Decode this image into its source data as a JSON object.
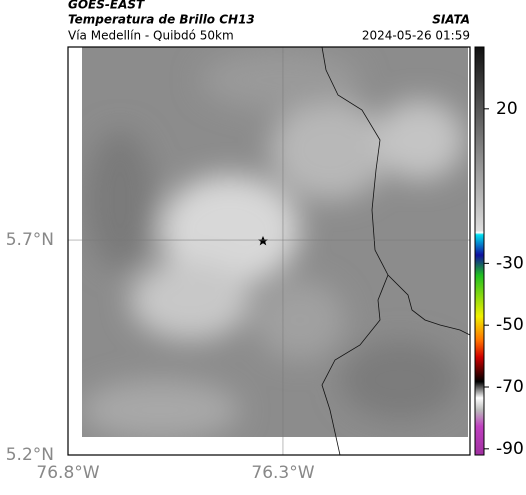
{
  "header": {
    "satellite": "GOES-EAST",
    "product": "Temperatura de Brillo CH13",
    "region": "Vía Medellín - Quibdó 50km",
    "source": "SIATA",
    "datetime": "2024-05-26 01:59"
  },
  "map": {
    "xlim": [
      -76.8,
      -75.865
    ],
    "ylim": [
      5.2,
      6.149
    ],
    "xticks": [
      {
        "value": -76.8,
        "label": "76.8°W"
      },
      {
        "value": -76.3,
        "label": "76.3°W"
      }
    ],
    "yticks": [
      {
        "value": 5.2,
        "label": "5.2°N"
      },
      {
        "value": 5.7,
        "label": "5.7°N"
      }
    ],
    "grid": true
  },
  "colorbar": {
    "lim": [
      -92,
      40
    ],
    "ticks": [
      20,
      -30,
      -50,
      -70,
      -90
    ]
  }
}
